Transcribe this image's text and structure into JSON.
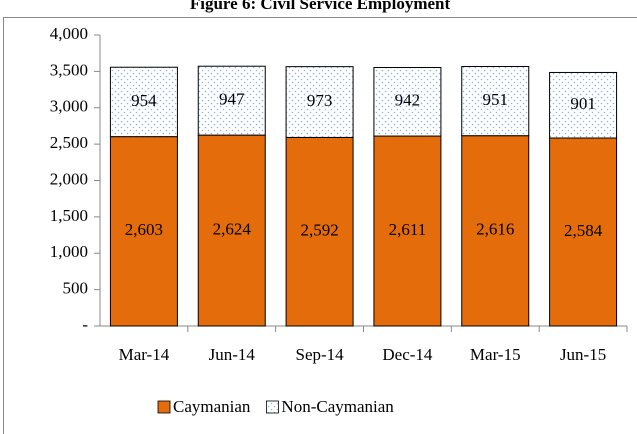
{
  "chart_data": {
    "type": "stacked_bar",
    "title": "Figure 6: Civil Service Employment",
    "categories": [
      "Mar-14",
      "Jun-14",
      "Sep-14",
      "Dec-14",
      "Mar-15",
      "Jun-15"
    ],
    "series": [
      {
        "name": "Caymanian",
        "color": "#e46c0a",
        "values": [
          2603,
          2624,
          2592,
          2611,
          2616,
          2584
        ],
        "value_labels": [
          "2,603",
          "2,624",
          "2,592",
          "2,611",
          "2,616",
          "2,584"
        ]
      },
      {
        "name": "Non-Caymanian",
        "color": "#ffffff",
        "values": [
          954,
          947,
          973,
          942,
          951,
          901
        ]
      }
    ],
    "ylim": [
      0,
      4000
    ],
    "yticks": [
      {
        "value": 0,
        "label": "-"
      },
      500,
      {
        "value": 1000,
        "label": "1,000"
      },
      {
        "value": 1500,
        "label": "1,500"
      },
      {
        "value": 2000,
        "label": "2,000"
      },
      {
        "value": 2500,
        "label": "2,500"
      },
      {
        "value": 3000,
        "label": "3,000"
      },
      {
        "value": 3500,
        "label": "3,500"
      },
      {
        "value": 4000,
        "label": "4,000"
      }
    ],
    "legend": "bottom"
  }
}
